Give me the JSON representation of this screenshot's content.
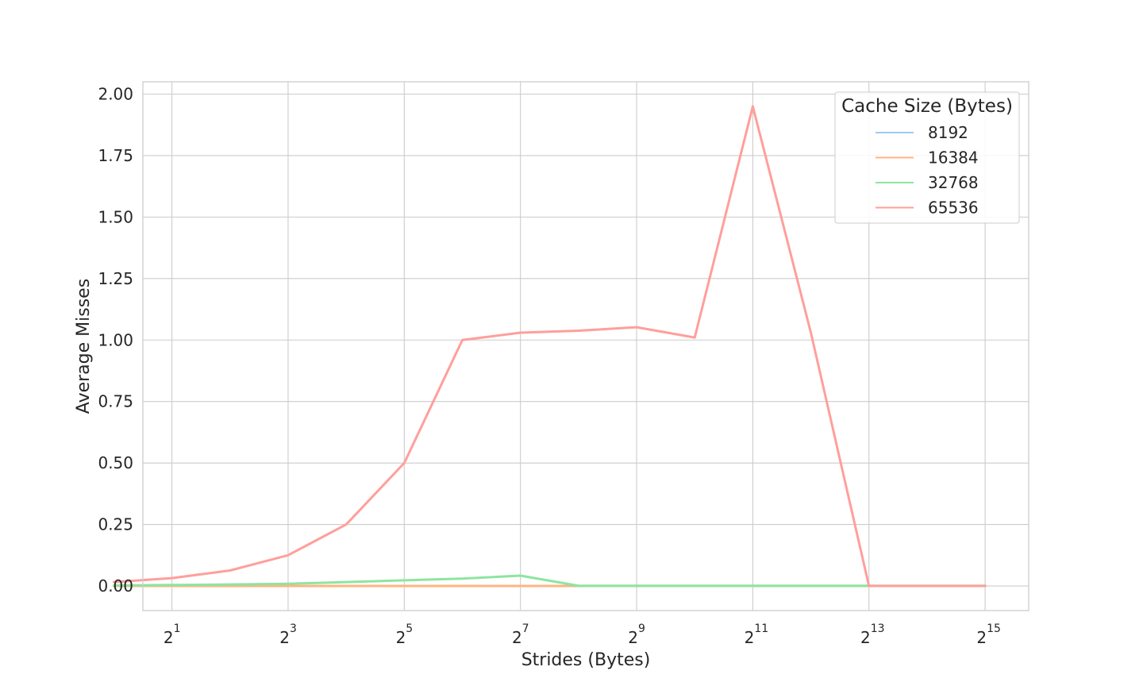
{
  "chart_data": {
    "type": "line",
    "x_label": "Strides (Bytes)",
    "y_label": "Average Misses",
    "x_scale": "log2",
    "x_range": [
      0.5,
      15.75
    ],
    "y_range": [
      -0.1,
      2.05
    ],
    "x_ticks": [
      {
        "value": 1,
        "base": "2",
        "exp": "1"
      },
      {
        "value": 3,
        "base": "2",
        "exp": "3"
      },
      {
        "value": 5,
        "base": "2",
        "exp": "5"
      },
      {
        "value": 7,
        "base": "2",
        "exp": "7"
      },
      {
        "value": 9,
        "base": "2",
        "exp": "9"
      },
      {
        "value": 11,
        "base": "2",
        "exp": "11"
      },
      {
        "value": 13,
        "base": "2",
        "exp": "13"
      },
      {
        "value": 15,
        "base": "2",
        "exp": "15"
      }
    ],
    "y_ticks": [
      {
        "value": 0.0,
        "label": "0.00"
      },
      {
        "value": 0.25,
        "label": "0.25"
      },
      {
        "value": 0.5,
        "label": "0.50"
      },
      {
        "value": 0.75,
        "label": "0.75"
      },
      {
        "value": 1.0,
        "label": "1.00"
      },
      {
        "value": 1.25,
        "label": "1.25"
      },
      {
        "value": 1.5,
        "label": "1.50"
      },
      {
        "value": 1.75,
        "label": "1.75"
      },
      {
        "value": 2.0,
        "label": "2.00"
      }
    ],
    "grid": true,
    "x_log2": [
      0,
      1,
      2,
      3,
      4,
      5,
      6,
      7,
      8,
      9,
      10,
      11,
      12,
      13,
      14,
      15
    ],
    "legend": {
      "title": "Cache Size (Bytes)",
      "position": "top-right"
    },
    "series": [
      {
        "name": "8192",
        "color": "#a1c9f4",
        "values": [
          0,
          0,
          0,
          0,
          0,
          0,
          0,
          0,
          0,
          0,
          0,
          0,
          0,
          0,
          0,
          0
        ]
      },
      {
        "name": "16384",
        "color": "#ffb482",
        "values": [
          0,
          0,
          0,
          0,
          0,
          0,
          0,
          0,
          0,
          0,
          0,
          0,
          0,
          0,
          0,
          0
        ]
      },
      {
        "name": "32768",
        "color": "#8de5a1",
        "values": [
          0.002,
          0.004,
          0.006,
          0.009,
          0.016,
          0.023,
          0.03,
          0.042,
          0.001,
          0.001,
          0.001,
          0.001,
          0.001,
          0.001,
          0.001,
          0.001
        ]
      },
      {
        "name": "65536",
        "color": "#ff9f9b",
        "values": [
          0.016,
          0.032,
          0.063,
          0.125,
          0.25,
          0.5,
          1.0,
          1.03,
          1.038,
          1.052,
          1.01,
          1.95,
          1.03,
          0.0,
          0.0,
          0.0
        ]
      }
    ]
  }
}
